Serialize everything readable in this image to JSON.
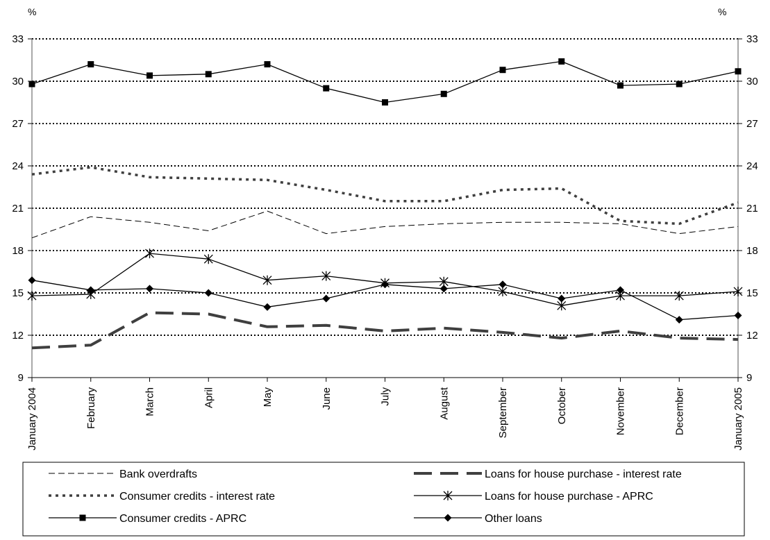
{
  "chart_data": {
    "type": "line",
    "unit_left": "%",
    "unit_right": "%",
    "categories": [
      "January 2004",
      "February",
      "March",
      "April",
      "May",
      "June",
      "July",
      "August",
      "September",
      "October",
      "November",
      "December",
      "January 2005"
    ],
    "ylim": [
      9,
      33
    ],
    "yticks": [
      9,
      12,
      15,
      18,
      21,
      24,
      27,
      30,
      33
    ],
    "grid": "horizontal dotted",
    "legend_position": "bottom",
    "series": [
      {
        "name": "Bank overdrafts",
        "style": "thin-dash",
        "values": [
          18.9,
          20.4,
          20.0,
          19.4,
          20.8,
          19.2,
          19.7,
          19.9,
          20.0,
          20.0,
          19.9,
          19.2,
          19.7
        ]
      },
      {
        "name": "Loans for house purchase - interest rate",
        "style": "thick-dash",
        "values": [
          11.1,
          11.3,
          13.6,
          13.5,
          12.6,
          12.7,
          12.3,
          12.5,
          12.2,
          11.8,
          12.3,
          11.8,
          11.7
        ]
      },
      {
        "name": "Consumer credits - interest rate",
        "style": "dotted",
        "values": [
          23.4,
          23.9,
          23.2,
          23.1,
          23.0,
          22.3,
          21.5,
          21.5,
          22.3,
          22.4,
          20.1,
          19.9,
          21.4
        ]
      },
      {
        "name": "Loans for house purchase - APRC",
        "style": "line-star",
        "values": [
          14.8,
          14.9,
          17.8,
          17.4,
          15.9,
          16.2,
          15.7,
          15.8,
          15.1,
          14.1,
          14.8,
          14.8,
          15.1
        ]
      },
      {
        "name": "Consumer credits - APRC",
        "style": "line-square",
        "values": [
          29.8,
          31.2,
          30.4,
          30.5,
          31.2,
          29.5,
          28.5,
          29.1,
          30.8,
          31.4,
          29.7,
          29.8,
          30.7
        ]
      },
      {
        "name": "Other loans",
        "style": "line-diamond",
        "values": [
          15.9,
          15.2,
          15.3,
          15.0,
          14.0,
          14.6,
          15.6,
          15.3,
          15.6,
          14.6,
          15.2,
          13.1,
          13.4
        ]
      }
    ]
  }
}
